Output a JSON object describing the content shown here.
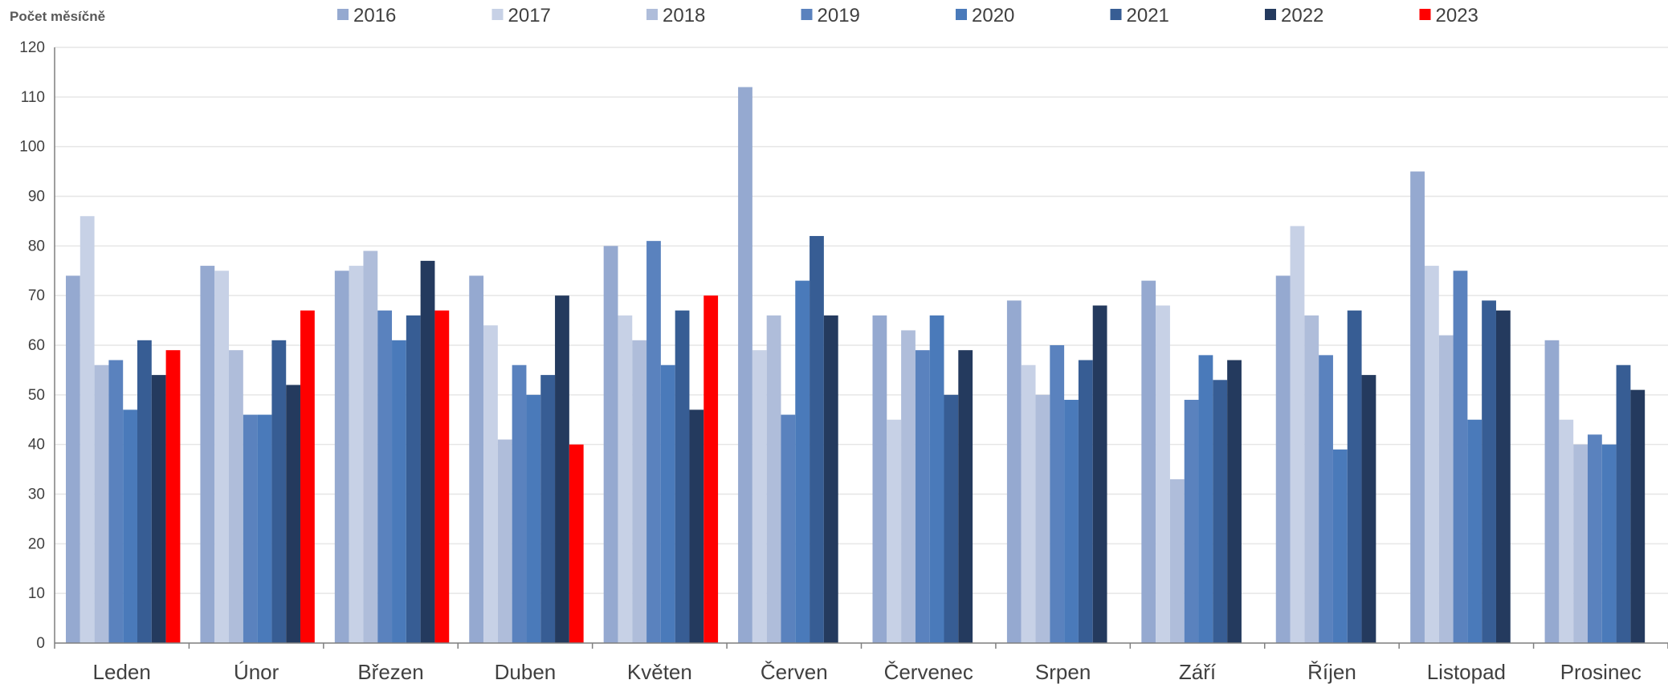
{
  "chart_data": {
    "type": "bar",
    "ylabel": "Počet měsíčně",
    "ylim": [
      0,
      120
    ],
    "yticks": [
      0,
      10,
      20,
      30,
      40,
      50,
      60,
      70,
      80,
      90,
      100,
      110,
      120
    ],
    "grid": true,
    "legend_position": "top",
    "categories": [
      "Leden",
      "Únor",
      "Březen",
      "Duben",
      "Květen",
      "Červen",
      "Červenec",
      "Srpen",
      "Září",
      "Říjen",
      "Listopad",
      "Prosinec"
    ],
    "series": [
      {
        "name": "2016",
        "color": "#95A9D0",
        "values": [
          74,
          76,
          75,
          74,
          80,
          112,
          66,
          69,
          73,
          74,
          95,
          61
        ]
      },
      {
        "name": "2017",
        "color": "#C7D1E6",
        "values": [
          86,
          75,
          76,
          64,
          66,
          59,
          45,
          56,
          68,
          84,
          76,
          45
        ]
      },
      {
        "name": "2018",
        "color": "#AFBDDA",
        "values": [
          56,
          59,
          79,
          41,
          61,
          66,
          63,
          50,
          33,
          66,
          62,
          40
        ]
      },
      {
        "name": "2019",
        "color": "#5A82BE",
        "values": [
          57,
          46,
          67,
          56,
          81,
          46,
          59,
          60,
          49,
          58,
          75,
          42
        ]
      },
      {
        "name": "2020",
        "color": "#4A7ABA",
        "values": [
          47,
          46,
          61,
          50,
          56,
          73,
          66,
          49,
          58,
          39,
          45,
          40
        ]
      },
      {
        "name": "2021",
        "color": "#375D94",
        "values": [
          61,
          61,
          66,
          54,
          67,
          82,
          50,
          57,
          53,
          67,
          69,
          56
        ]
      },
      {
        "name": "2022",
        "color": "#243A5E",
        "values": [
          54,
          52,
          77,
          70,
          47,
          66,
          59,
          68,
          57,
          54,
          67,
          51
        ]
      },
      {
        "name": "2023",
        "color": "#FF0000",
        "values": [
          59,
          67,
          67,
          40,
          70,
          null,
          null,
          null,
          null,
          null,
          null,
          null
        ]
      }
    ]
  }
}
